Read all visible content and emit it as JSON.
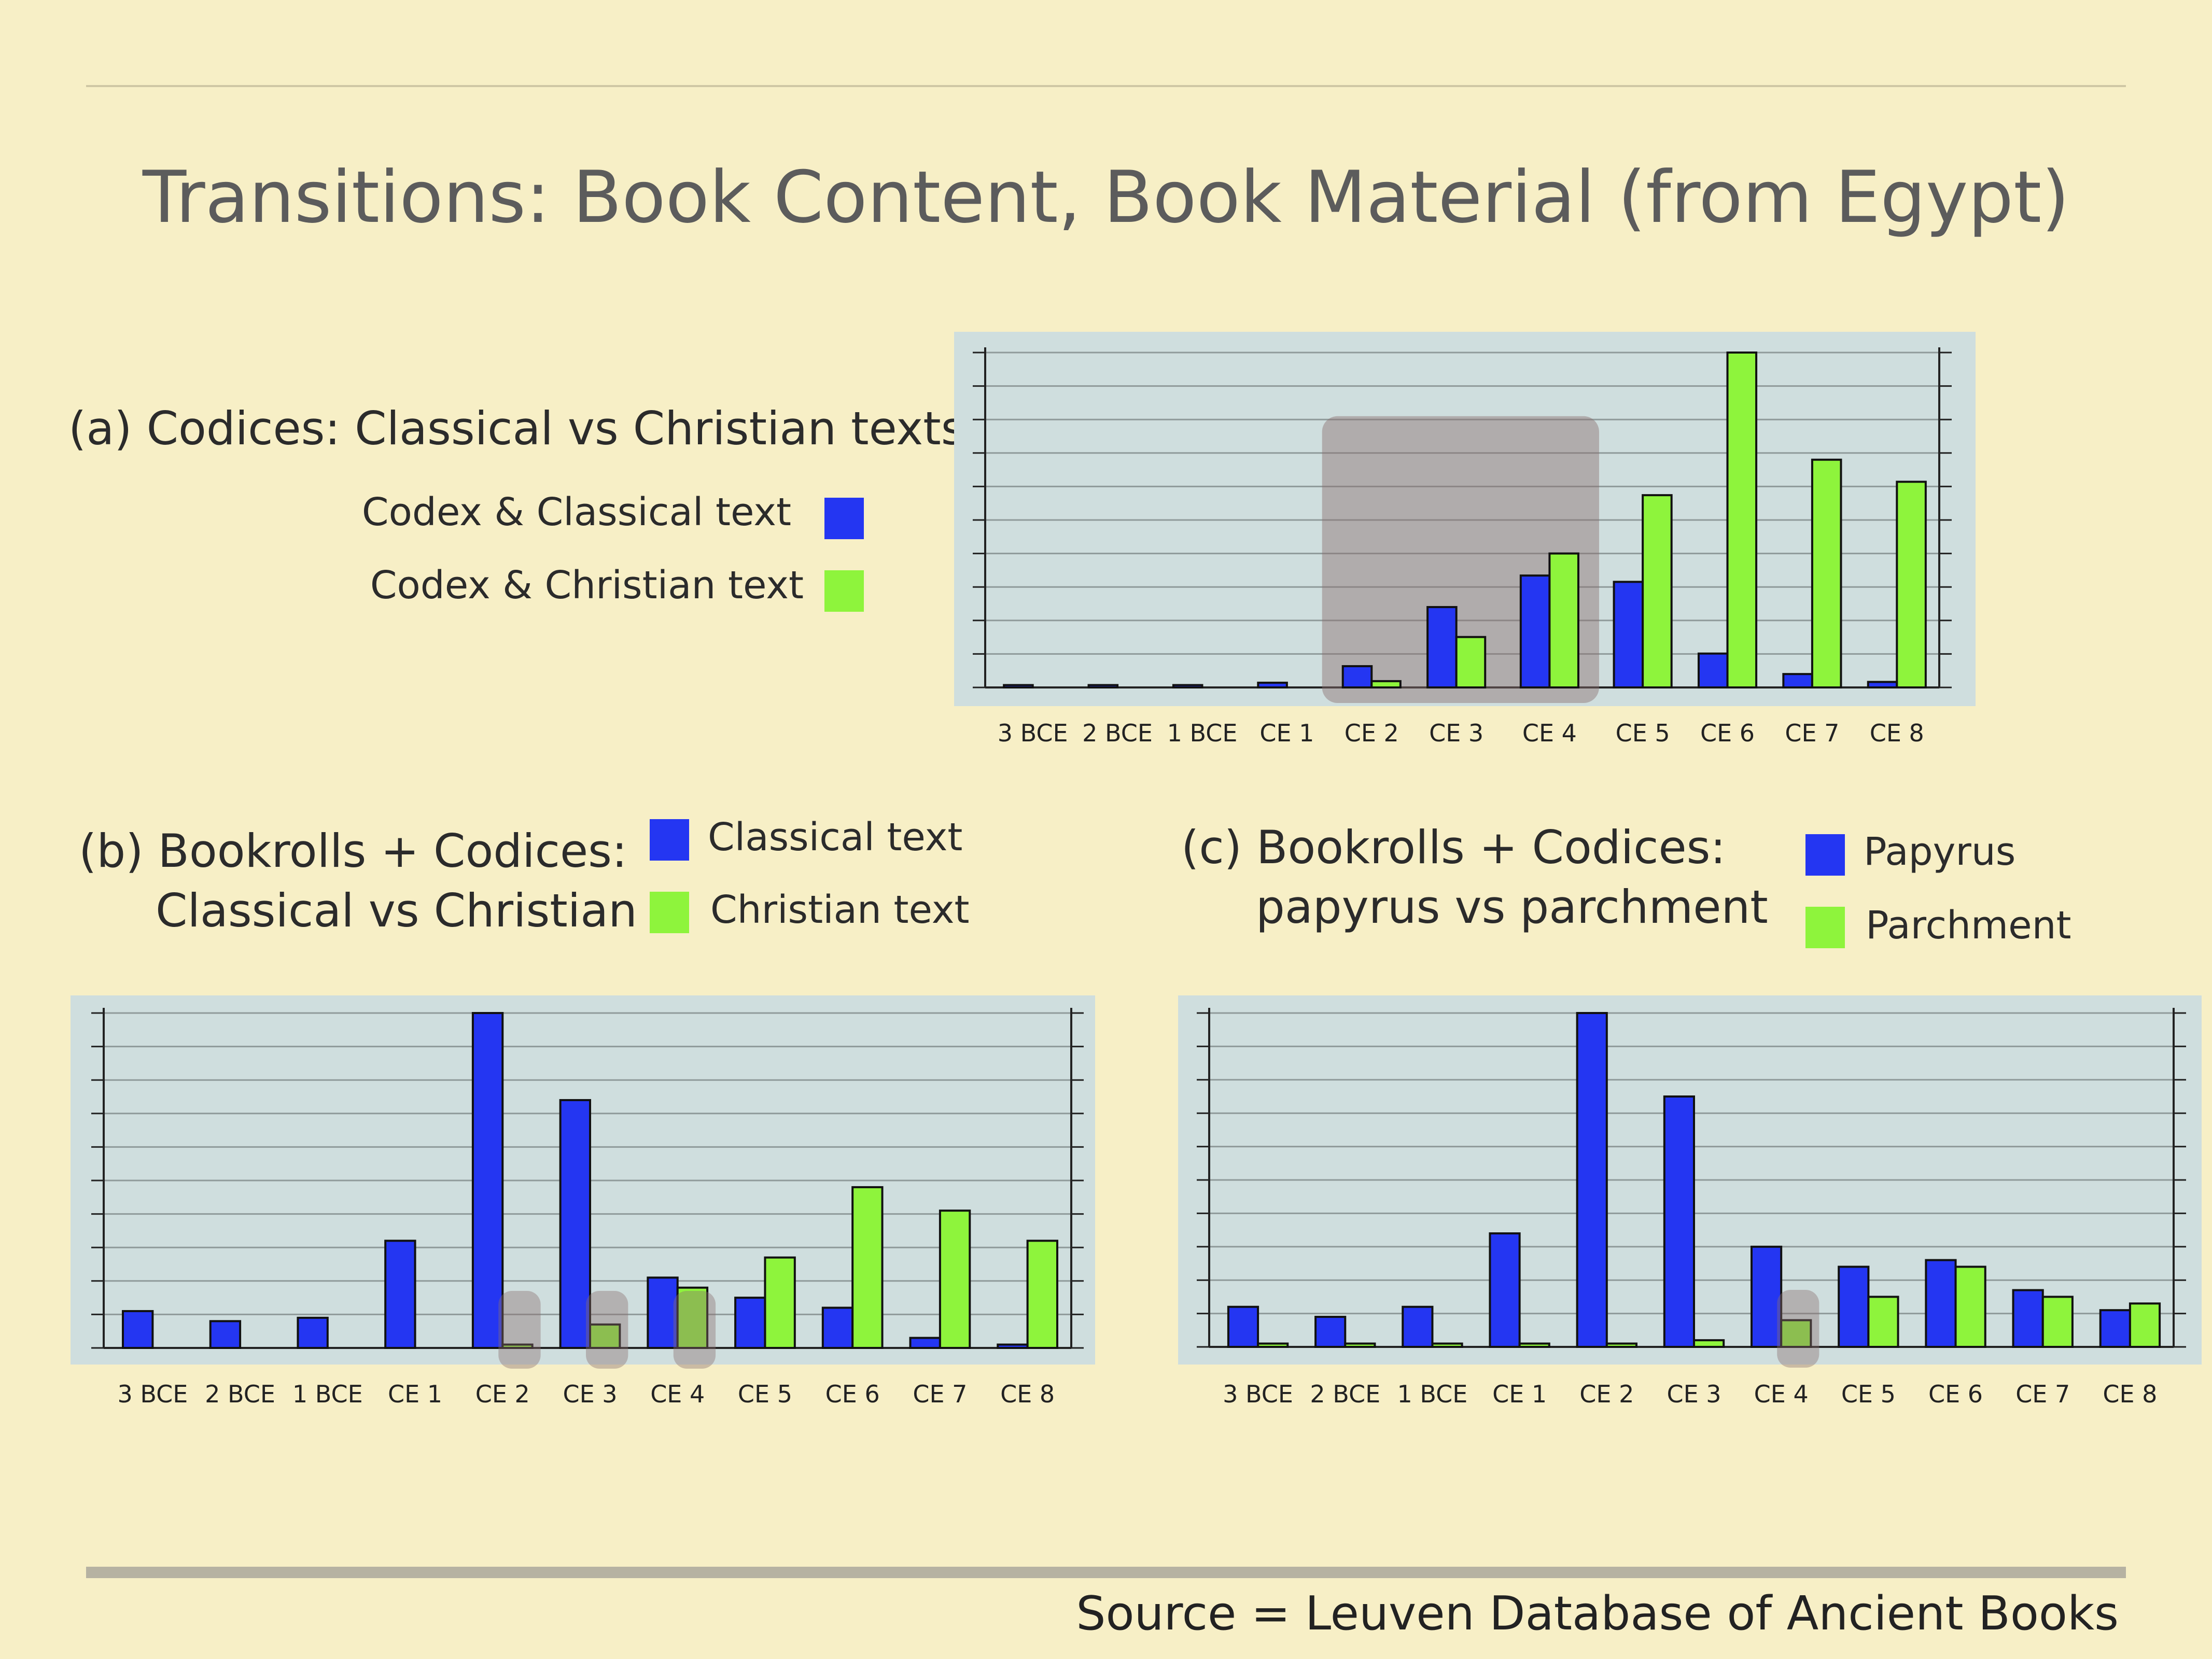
{
  "title": "Transitions: Book Content, Book Material (from Egypt)",
  "source": "Source = Leuven Database of Ancient Books",
  "colors": {
    "series1": "#2436f2",
    "series2": "#8ef43c",
    "plot_bg": "#cfdede",
    "highlight": "#8a6f6f"
  },
  "panels": {
    "a": {
      "heading": "(a) Codices: Classical vs Christian texts",
      "legend": [
        "Codex & Classical text",
        "Codex & Christian text"
      ]
    },
    "b": {
      "heading_line1": "(b) Bookrolls + Codices:",
      "heading_line2": "Classical vs Christian",
      "legend": [
        "Classical text",
        "Christian text"
      ]
    },
    "c": {
      "heading_line1": "(c) Bookrolls + Codices:",
      "heading_line2": "papyrus vs parchment",
      "legend": [
        "Papyrus",
        "Parchment"
      ]
    }
  },
  "chart_data": [
    {
      "id": "a",
      "type": "bar",
      "categories": [
        "3 BCE",
        "2 BCE",
        "1 BCE",
        "CE 1",
        "CE 2",
        "CE 3",
        "CE 4",
        "CE 5",
        "CE 6",
        "CE 7",
        "CE 8"
      ],
      "series": [
        {
          "name": "Codex & Classical text",
          "values": [
            0.3,
            0.3,
            0.3,
            0.6,
            2.7,
            10.2,
            14.2,
            13.4,
            4.3,
            1.7,
            0.7
          ]
        },
        {
          "name": "Codex & Christian text",
          "values": [
            0,
            0,
            0,
            0,
            0.8,
            6.4,
            17.0,
            24.4,
            42.5,
            28.9,
            26.1
          ]
        }
      ],
      "ylim": [
        0,
        42.5
      ],
      "grid": true,
      "highlight_categories": [
        "CE 2",
        "CE 3",
        "CE 4"
      ]
    },
    {
      "id": "b",
      "type": "bar",
      "categories": [
        "3 BCE",
        "2 BCE",
        "1 BCE",
        "CE 1",
        "CE 2",
        "CE 3",
        "CE 4",
        "CE 5",
        "CE 6",
        "CE 7",
        "CE 8"
      ],
      "series": [
        {
          "name": "Classical text",
          "values": [
            1.1,
            0.8,
            0.9,
            3.2,
            10.0,
            7.4,
            2.1,
            1.5,
            1.2,
            0.3,
            0.1
          ]
        },
        {
          "name": "Christian text",
          "values": [
            0,
            0,
            0,
            0,
            0.1,
            0.7,
            1.8,
            2.7,
            4.8,
            4.1,
            3.2
          ]
        }
      ],
      "ylim": [
        0,
        10
      ],
      "grid": true,
      "highlight_categories": [
        "CE 2",
        "CE 3",
        "CE 4"
      ]
    },
    {
      "id": "c",
      "type": "bar",
      "categories": [
        "3 BCE",
        "2 BCE",
        "1 BCE",
        "CE 1",
        "CE 2",
        "CE 3",
        "CE 4",
        "CE 5",
        "CE 6",
        "CE 7",
        "CE 8"
      ],
      "series": [
        {
          "name": "Papyrus",
          "values": [
            1.2,
            0.9,
            1.2,
            3.4,
            10.0,
            7.5,
            3.0,
            2.4,
            2.6,
            1.7,
            1.1
          ]
        },
        {
          "name": "Parchment",
          "values": [
            0.1,
            0.1,
            0.1,
            0.1,
            0.1,
            0.2,
            0.8,
            1.5,
            2.4,
            1.5,
            1.3
          ]
        }
      ],
      "ylim": [
        0,
        10
      ],
      "grid": true,
      "highlight_categories": [
        "CE 4"
      ]
    }
  ]
}
